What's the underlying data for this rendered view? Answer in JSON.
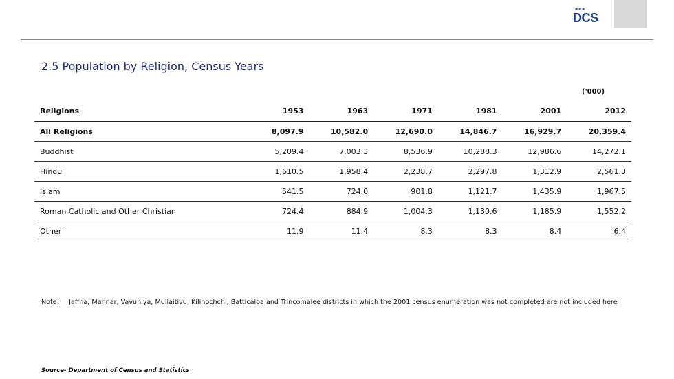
{
  "header": {
    "logo_text": "DCS",
    "logo_dots": "▪▪▪"
  },
  "title": "2.5  Population by Religion, Census Years",
  "unit": "('000)",
  "table": {
    "columns": [
      "Religions",
      "1953",
      "1963",
      "1971",
      "1981",
      "2001",
      "2012"
    ],
    "rows": [
      {
        "label": "All Religions",
        "values": [
          "8,097.9",
          "10,582.0",
          "12,690.0",
          "14,846.7",
          "16,929.7",
          "20,359.4"
        ],
        "bold": true
      },
      {
        "label": "Buddhist",
        "values": [
          "5,209.4",
          "7,003.3",
          "8,536.9",
          "10,288.3",
          "12,986.6",
          "14,272.1"
        ],
        "bold": false
      },
      {
        "label": "Hindu",
        "values": [
          "1,610.5",
          "1,958.4",
          "2,238.7",
          "2,297.8",
          "1,312.9",
          "2,561.3"
        ],
        "bold": false
      },
      {
        "label": "Islam",
        "values": [
          "541.5",
          "724.0",
          "901.8",
          "1,121.7",
          "1,435.9",
          "1,967.5"
        ],
        "bold": false
      },
      {
        "label": "Roman Catholic and Other Christian",
        "values": [
          "724.4",
          "884.9",
          "1,004.3",
          "1,130.6",
          "1,185.9",
          "1,552.2"
        ],
        "bold": false
      },
      {
        "label": "Other",
        "values": [
          "11.9",
          "11.4",
          "8.3",
          "8.3",
          "8.4",
          "6.4"
        ],
        "bold": false
      }
    ]
  },
  "note": {
    "label": "Note:",
    "text": "Jaffna, Mannar, Vavuniya, Mullaitivu, Kilinochchi, Batticaloa and Trincomalee districts in which the  2001 census enumeration  was not completed are not included here"
  },
  "source": "Source- Department of Census and Statistics"
}
